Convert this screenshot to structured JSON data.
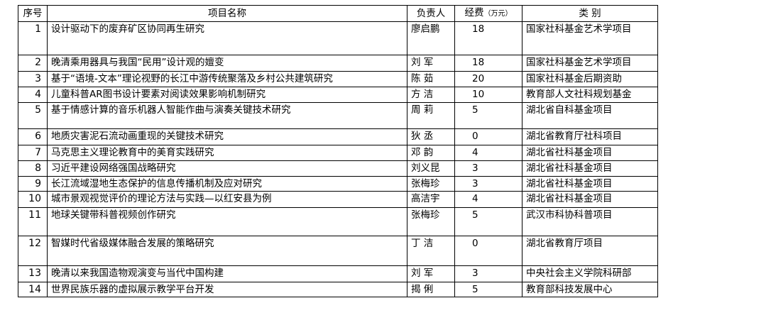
{
  "headers": {
    "no": "序号",
    "name": "项目名称",
    "leader": "负责人",
    "fund": "经费",
    "fund_unit": "（万元）",
    "category": "类 别"
  },
  "rows": [
    {
      "no": "1",
      "name": "设计驱动下的废弃矿区协同再生研究",
      "leader": "廖启鹏",
      "fund": "18",
      "category": "国家社科基金艺术学项目"
    },
    {
      "no": "2",
      "name": "晚清乘用器具与我国“民用”设计观的嬗变",
      "leader": "刘  军",
      "fund": "18",
      "category": "国家社科基金艺术学项目"
    },
    {
      "no": "3",
      "name": "基于“语境-文本”理论视野的长江中游传统聚落及乡村公共建筑研究",
      "leader": "陈 茹",
      "fund": "20",
      "category": "国家社科基金后期资助"
    },
    {
      "no": "4",
      "name": "儿童科普AR图书设计要素对阅读效果影响机制研究",
      "leader": "方 洁",
      "fund": "10",
      "category": "教育部人文社科规划基金"
    },
    {
      "no": "5",
      "name": "基于情感计算的音乐机器人智能作曲与演奏关键技术研究",
      "leader": "周 莉",
      "fund": "5",
      "category": "湖北省自科基金项目"
    },
    {
      "no": "6",
      "name": "地质灾害泥石流动画重现的关键技术研究",
      "leader": "狄 丞",
      "fund": "0",
      "category": "湖北省教育厅社科项目"
    },
    {
      "no": "7",
      "name": "马克思主义理论教育中的美育实践研究",
      "leader": "邓  韵",
      "fund": "4",
      "category": "湖北省社科基金项目"
    },
    {
      "no": "8",
      "name": "习近平建设网络强国战略研究",
      "leader": "刘义昆",
      "fund": "3",
      "category": "湖北省社科基金项目"
    },
    {
      "no": "9",
      "name": "长江流域湿地生态保护的信息传播机制及应对研究",
      "leader": "张梅珍",
      "fund": "3",
      "category": "湖北省社科基金项目"
    },
    {
      "no": "10",
      "name": "城市景观视觉评价的理论方法与实践—以红安县为例",
      "leader": "高洁宇",
      "fund": "4",
      "category": "湖北省社科基金项目"
    },
    {
      "no": "11",
      "name": "地球关键带科普视频创作研究",
      "leader": "张梅珍",
      "fund": "5",
      "category": "武汉市科协科普项目"
    },
    {
      "no": "12",
      "name": "智媒时代省级媒体融合发展的策略研究",
      "leader": "丁  洁",
      "fund": "0",
      "category": "湖北省教育厅项目"
    },
    {
      "no": "13",
      "name": "晚清以来我国造物观演变与当代中国构建",
      "leader": "刘  军",
      "fund": "3",
      "category": "中央社会主义学院科研部"
    },
    {
      "no": "14",
      "name": "世界民族乐器的虚拟展示教学平台开发",
      "leader": "揭  俐",
      "fund": "5",
      "category": "教育部科技发展中心"
    }
  ]
}
